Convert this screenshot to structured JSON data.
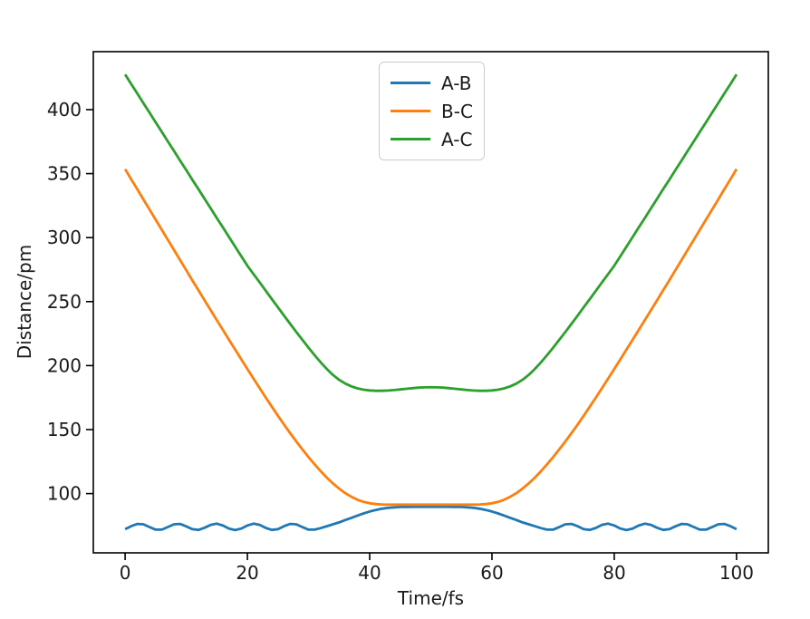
{
  "figure": {
    "background": "#ffffff",
    "axis_color": "#000000",
    "text_color": "#1a1a1a"
  },
  "chart_data": {
    "type": "line",
    "title": "",
    "xlabel": "Time/fs",
    "ylabel": "Distance/pm",
    "grid": false,
    "legend_position": "upper center",
    "legend_border_color": "#cccccc",
    "x_ticks": [
      0,
      20,
      40,
      60,
      80,
      100
    ],
    "y_ticks": [
      100,
      150,
      200,
      250,
      300,
      350,
      400
    ],
    "xlim": [
      -5.2,
      105.2
    ],
    "ylim": [
      53.7,
      445.3
    ],
    "x": [
      0,
      1,
      2,
      3,
      4,
      5,
      6,
      7,
      8,
      9,
      10,
      11,
      12,
      13,
      14,
      15,
      16,
      17,
      18,
      19,
      20,
      21,
      22,
      23,
      24,
      25,
      26,
      27,
      28,
      29,
      30,
      31,
      32,
      33,
      34,
      35,
      36,
      37,
      38,
      39,
      40,
      41,
      42,
      43,
      44,
      45,
      46,
      47,
      48,
      49,
      50,
      51,
      52,
      53,
      54,
      55,
      56,
      57,
      58,
      59,
      60,
      61,
      62,
      63,
      64,
      65,
      66,
      67,
      68,
      69,
      70,
      71,
      72,
      73,
      74,
      75,
      76,
      77,
      78,
      79,
      80,
      81,
      82,
      83,
      84,
      85,
      86,
      87,
      88,
      89,
      90,
      91,
      92,
      93,
      94,
      95,
      96,
      97,
      98,
      99,
      100
    ],
    "series": [
      {
        "name": "A-B",
        "color": "#1f77b4",
        "values": [
          72.2,
          74.5,
          76.3,
          76.0,
          73.8,
          71.8,
          71.8,
          73.9,
          76.0,
          76.3,
          74.4,
          72.2,
          71.6,
          73.3,
          75.6,
          76.5,
          75.0,
          72.6,
          71.5,
          72.7,
          75.1,
          76.5,
          75.6,
          73.2,
          71.6,
          72.2,
          74.5,
          76.3,
          76.0,
          73.8,
          71.8,
          71.8,
          73.0,
          74.5,
          76.0,
          77.5,
          79.3,
          81.0,
          82.8,
          84.5,
          86.0,
          87.2,
          88.2,
          88.8,
          89.2,
          89.5,
          89.6,
          89.7,
          89.7,
          89.7,
          89.7,
          89.7,
          89.7,
          89.7,
          89.6,
          89.5,
          89.2,
          88.8,
          88.2,
          87.2,
          86.0,
          84.5,
          82.8,
          81.0,
          79.3,
          77.5,
          76.0,
          74.5,
          73.0,
          71.8,
          71.8,
          73.8,
          76.0,
          76.3,
          74.5,
          72.2,
          71.6,
          73.2,
          75.6,
          76.5,
          75.1,
          72.7,
          71.5,
          72.6,
          75.0,
          76.5,
          75.6,
          73.3,
          71.6,
          72.2,
          74.4,
          76.3,
          76.0,
          73.9,
          71.8,
          71.8,
          73.8,
          76.0,
          76.3,
          74.5,
          72.2
        ]
      },
      {
        "name": "B-C",
        "color": "#ff7f0e",
        "values": [
          353.5,
          345.6,
          337.7,
          329.8,
          321.9,
          314.0,
          306.1,
          298.2,
          290.3,
          282.4,
          274.5,
          266.6,
          258.8,
          251.0,
          243.2,
          235.5,
          227.8,
          220.1,
          212.5,
          204.9,
          197.3,
          189.8,
          182.4,
          175.1,
          167.9,
          160.8,
          153.9,
          147.2,
          140.7,
          134.5,
          128.5,
          122.8,
          117.4,
          112.4,
          107.9,
          103.9,
          100.4,
          97.5,
          95.2,
          93.5,
          92.4,
          91.8,
          91.5,
          91.4,
          91.4,
          91.4,
          91.4,
          91.4,
          91.4,
          91.4,
          91.4,
          91.4,
          91.4,
          91.4,
          91.4,
          91.4,
          91.4,
          91.4,
          91.5,
          91.8,
          92.4,
          93.5,
          95.2,
          97.5,
          100.4,
          103.9,
          107.9,
          112.4,
          117.4,
          122.8,
          128.5,
          134.5,
          140.7,
          147.2,
          153.9,
          160.8,
          167.9,
          175.1,
          182.4,
          189.8,
          197.3,
          204.9,
          212.5,
          220.1,
          227.8,
          235.5,
          243.2,
          251.0,
          258.8,
          266.6,
          274.5,
          282.4,
          290.3,
          298.2,
          306.1,
          314.0,
          321.9,
          329.8,
          337.7,
          345.6,
          353.5
        ]
      },
      {
        "name": "A-C",
        "color": "#2ca02c",
        "values": [
          427.5,
          420.0,
          412.5,
          405.0,
          397.6,
          390.1,
          382.6,
          375.1,
          367.7,
          360.2,
          352.7,
          345.2,
          337.8,
          330.3,
          322.8,
          315.3,
          307.9,
          300.4,
          292.9,
          285.5,
          278.0,
          271.5,
          265.0,
          258.5,
          252.0,
          245.5,
          239.0,
          232.6,
          226.3,
          220.1,
          214.0,
          208.1,
          202.5,
          197.3,
          192.7,
          188.9,
          186.0,
          183.8,
          182.2,
          181.2,
          180.6,
          180.3,
          180.3,
          180.5,
          180.9,
          181.4,
          181.9,
          182.4,
          182.8,
          183.0,
          183.1,
          183.0,
          182.8,
          182.4,
          181.9,
          181.4,
          180.9,
          180.5,
          180.3,
          180.3,
          180.6,
          181.2,
          182.2,
          183.8,
          186.0,
          188.9,
          192.7,
          197.3,
          202.5,
          208.1,
          214.0,
          220.1,
          226.3,
          232.6,
          239.0,
          245.5,
          252.0,
          258.5,
          265.0,
          271.5,
          278.0,
          285.5,
          292.9,
          300.4,
          307.9,
          315.3,
          322.8,
          330.3,
          337.8,
          345.2,
          352.7,
          360.2,
          367.7,
          375.1,
          382.6,
          390.1,
          397.6,
          405.0,
          412.5,
          420.0,
          427.5
        ]
      }
    ]
  }
}
